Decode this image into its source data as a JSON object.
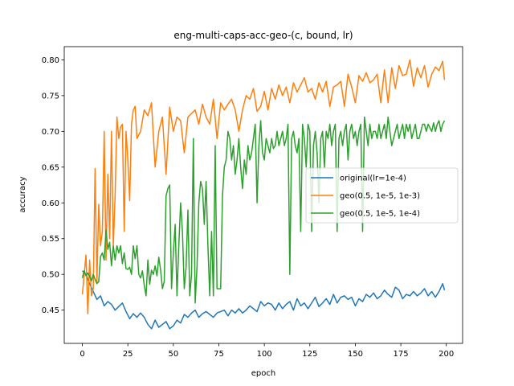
{
  "chart_data": {
    "type": "line",
    "title": "eng-multi-caps-acc-geo-(c, bound, lr)",
    "xlabel": "epoch",
    "ylabel": "accuracy",
    "xlim": [
      -9.95,
      208.95
    ],
    "ylim": [
      0.4035,
      0.8185
    ],
    "xticks": [
      0,
      25,
      50,
      75,
      100,
      125,
      150,
      175,
      200
    ],
    "yticks": [
      0.45,
      0.5,
      0.55,
      0.6,
      0.65,
      0.7,
      0.75,
      0.8
    ],
    "grid": false,
    "legend_position": "center-right",
    "series": [
      {
        "name": "original(lr=1e-4)",
        "color": "#1f77b4",
        "x": [
          0,
          2,
          4,
          6,
          8,
          10,
          12,
          14,
          16,
          18,
          20,
          22,
          24,
          26,
          28,
          30,
          32,
          34,
          36,
          38,
          40,
          42,
          44,
          46,
          48,
          50,
          52,
          54,
          56,
          58,
          60,
          62,
          64,
          66,
          68,
          70,
          72,
          74,
          76,
          78,
          80,
          82,
          84,
          86,
          88,
          90,
          92,
          94,
          96,
          98,
          100,
          102,
          104,
          106,
          108,
          110,
          112,
          114,
          116,
          118,
          120,
          122,
          124,
          126,
          128,
          130,
          132,
          134,
          136,
          138,
          140,
          142,
          144,
          146,
          148,
          150,
          152,
          154,
          156,
          158,
          160,
          162,
          164,
          166,
          168,
          170,
          172,
          174,
          176,
          178,
          180,
          182,
          184,
          186,
          188,
          190,
          192,
          194,
          196,
          198,
          199
        ],
        "y": [
          0.505,
          0.5,
          0.487,
          0.476,
          0.465,
          0.47,
          0.456,
          0.462,
          0.458,
          0.45,
          0.455,
          0.46,
          0.448,
          0.438,
          0.445,
          0.44,
          0.446,
          0.44,
          0.43,
          0.424,
          0.436,
          0.426,
          0.43,
          0.434,
          0.424,
          0.428,
          0.436,
          0.432,
          0.444,
          0.44,
          0.446,
          0.45,
          0.44,
          0.445,
          0.448,
          0.444,
          0.44,
          0.446,
          0.448,
          0.45,
          0.442,
          0.45,
          0.446,
          0.452,
          0.446,
          0.45,
          0.456,
          0.452,
          0.448,
          0.462,
          0.456,
          0.46,
          0.458,
          0.45,
          0.46,
          0.452,
          0.458,
          0.462,
          0.45,
          0.466,
          0.456,
          0.46,
          0.452,
          0.46,
          0.468,
          0.455,
          0.46,
          0.466,
          0.458,
          0.472,
          0.46,
          0.468,
          0.47,
          0.465,
          0.468,
          0.456,
          0.466,
          0.462,
          0.472,
          0.468,
          0.474,
          0.466,
          0.47,
          0.478,
          0.472,
          0.468,
          0.482,
          0.478,
          0.466,
          0.472,
          0.47,
          0.476,
          0.47,
          0.474,
          0.48,
          0.47,
          0.476,
          0.468,
          0.476,
          0.487,
          0.478
        ]
      },
      {
        "name": "geo(0.5, 1e-5, 1e-3)",
        "color": "#ff7f0e",
        "x": [
          0,
          1,
          2,
          3,
          4,
          5,
          6,
          7,
          8,
          9,
          10,
          11,
          12,
          13,
          14,
          15,
          16,
          17,
          18,
          19,
          20,
          21,
          22,
          23,
          24,
          25,
          26,
          27,
          28,
          29,
          30,
          32,
          34,
          36,
          38,
          40,
          42,
          44,
          46,
          48,
          50,
          52,
          54,
          56,
          58,
          60,
          62,
          64,
          66,
          68,
          70,
          72,
          74,
          76,
          78,
          80,
          82,
          84,
          86,
          88,
          90,
          92,
          94,
          96,
          98,
          100,
          102,
          104,
          106,
          108,
          110,
          112,
          114,
          116,
          118,
          120,
          122,
          124,
          126,
          128,
          130,
          132,
          134,
          136,
          138,
          140,
          142,
          144,
          146,
          148,
          150,
          152,
          154,
          156,
          158,
          160,
          162,
          164,
          166,
          168,
          170,
          172,
          174,
          176,
          178,
          180,
          182,
          184,
          186,
          188,
          190,
          192,
          194,
          196,
          198,
          199
        ],
        "y": [
          0.472,
          0.5,
          0.527,
          0.445,
          0.52,
          0.47,
          0.48,
          0.648,
          0.49,
          0.598,
          0.54,
          0.56,
          0.7,
          0.52,
          0.64,
          0.55,
          0.7,
          0.54,
          0.61,
          0.72,
          0.69,
          0.706,
          0.71,
          0.56,
          0.7,
          0.66,
          0.603,
          0.71,
          0.73,
          0.735,
          0.69,
          0.7,
          0.73,
          0.722,
          0.74,
          0.65,
          0.7,
          0.72,
          0.64,
          0.734,
          0.7,
          0.72,
          0.715,
          0.67,
          0.72,
          0.725,
          0.73,
          0.71,
          0.738,
          0.72,
          0.71,
          0.745,
          0.69,
          0.74,
          0.73,
          0.738,
          0.745,
          0.73,
          0.7,
          0.73,
          0.75,
          0.745,
          0.76,
          0.728,
          0.735,
          0.756,
          0.73,
          0.76,
          0.745,
          0.765,
          0.75,
          0.762,
          0.74,
          0.768,
          0.755,
          0.765,
          0.775,
          0.755,
          0.76,
          0.745,
          0.768,
          0.755,
          0.77,
          0.735,
          0.762,
          0.765,
          0.77,
          0.735,
          0.78,
          0.762,
          0.74,
          0.778,
          0.77,
          0.782,
          0.768,
          0.772,
          0.78,
          0.74,
          0.786,
          0.74,
          0.789,
          0.76,
          0.792,
          0.778,
          0.78,
          0.8,
          0.763,
          0.789,
          0.775,
          0.792,
          0.762,
          0.78,
          0.79,
          0.785,
          0.798,
          0.772
        ]
      },
      {
        "name": "geo(0.5, 1e-5, 1e-4)",
        "color": "#2ca02c",
        "x": [
          0,
          1,
          2,
          3,
          4,
          5,
          6,
          7,
          8,
          9,
          10,
          11,
          12,
          13,
          14,
          15,
          16,
          17,
          18,
          19,
          20,
          21,
          22,
          23,
          24,
          25,
          26,
          27,
          28,
          29,
          30,
          31,
          32,
          33,
          34,
          35,
          36,
          37,
          38,
          39,
          40,
          41,
          42,
          43,
          44,
          45,
          46,
          47,
          48,
          49,
          50,
          51,
          52,
          53,
          54,
          55,
          56,
          57,
          58,
          59,
          60,
          61,
          62,
          63,
          64,
          65,
          66,
          67,
          68,
          69,
          70,
          71,
          72,
          73,
          74,
          75,
          76,
          77,
          78,
          79,
          80,
          81,
          82,
          83,
          84,
          85,
          86,
          87,
          88,
          89,
          90,
          91,
          92,
          93,
          94,
          95,
          96,
          97,
          98,
          99,
          100,
          101,
          102,
          103,
          104,
          105,
          106,
          107,
          108,
          109,
          110,
          111,
          112,
          113,
          114,
          115,
          116,
          117,
          118,
          119,
          120,
          121,
          122,
          123,
          124,
          125,
          126,
          127,
          128,
          129,
          130,
          131,
          132,
          133,
          134,
          135,
          136,
          137,
          138,
          139,
          140,
          141,
          142,
          143,
          144,
          145,
          146,
          147,
          148,
          149,
          150,
          151,
          152,
          153,
          154,
          155,
          156,
          157,
          158,
          159,
          160,
          161,
          162,
          163,
          164,
          165,
          166,
          167,
          168,
          169,
          170,
          171,
          172,
          173,
          174,
          175,
          176,
          177,
          178,
          179,
          180,
          181,
          182,
          183,
          184,
          185,
          186,
          187,
          188,
          189,
          190,
          191,
          192,
          193,
          194,
          195,
          196,
          197,
          198,
          199
        ],
        "y": [
          0.495,
          0.505,
          0.498,
          0.502,
          0.497,
          0.491,
          0.5,
          0.493,
          0.487,
          0.49,
          0.525,
          0.53,
          0.52,
          0.562,
          0.535,
          0.545,
          0.512,
          0.54,
          0.52,
          0.54,
          0.53,
          0.54,
          0.515,
          0.53,
          0.508,
          0.507,
          0.51,
          0.5,
          0.54,
          0.522,
          0.54,
          0.5,
          0.495,
          0.505,
          0.485,
          0.47,
          0.52,
          0.486,
          0.506,
          0.5,
          0.512,
          0.498,
          0.524,
          0.506,
          0.48,
          0.49,
          0.61,
          0.62,
          0.625,
          0.48,
          0.53,
          0.57,
          0.47,
          0.54,
          0.6,
          0.56,
          0.48,
          0.51,
          0.59,
          0.47,
          0.5,
          0.69,
          0.46,
          0.51,
          0.6,
          0.63,
          0.62,
          0.57,
          0.63,
          0.54,
          0.47,
          0.56,
          0.47,
          0.68,
          0.48,
          0.48,
          0.48,
          0.61,
          0.65,
          0.66,
          0.7,
          0.69,
          0.66,
          0.68,
          0.64,
          0.66,
          0.69,
          0.65,
          0.62,
          0.66,
          0.64,
          0.68,
          0.66,
          0.67,
          0.69,
          0.71,
          0.6,
          0.68,
          0.715,
          0.67,
          0.66,
          0.69,
          0.68,
          0.67,
          0.69,
          0.676,
          0.68,
          0.7,
          0.68,
          0.69,
          0.7,
          0.68,
          0.69,
          0.71,
          0.5,
          0.69,
          0.7,
          0.68,
          0.67,
          0.69,
          0.56,
          0.71,
          0.69,
          0.65,
          0.71,
          0.7,
          0.56,
          0.68,
          0.7,
          0.67,
          0.6,
          0.69,
          0.7,
          0.65,
          0.7,
          0.69,
          0.71,
          0.68,
          0.7,
          0.71,
          0.56,
          0.69,
          0.7,
          0.68,
          0.7,
          0.71,
          0.66,
          0.7,
          0.71,
          0.69,
          0.7,
          0.68,
          0.7,
          0.71,
          0.56,
          0.72,
          0.7,
          0.68,
          0.71,
          0.69,
          0.7,
          0.7,
          0.69,
          0.71,
          0.69,
          0.7,
          0.71,
          0.69,
          0.72,
          0.7,
          0.68,
          0.69,
          0.7,
          0.71,
          0.69,
          0.7,
          0.71,
          0.69,
          0.71,
          0.7,
          0.71,
          0.69,
          0.7,
          0.71,
          0.69,
          0.69,
          0.7,
          0.71,
          0.71,
          0.7,
          0.71,
          0.705,
          0.7,
          0.712,
          0.7,
          0.71,
          0.715,
          0.7,
          0.71,
          0.715
        ]
      }
    ]
  }
}
